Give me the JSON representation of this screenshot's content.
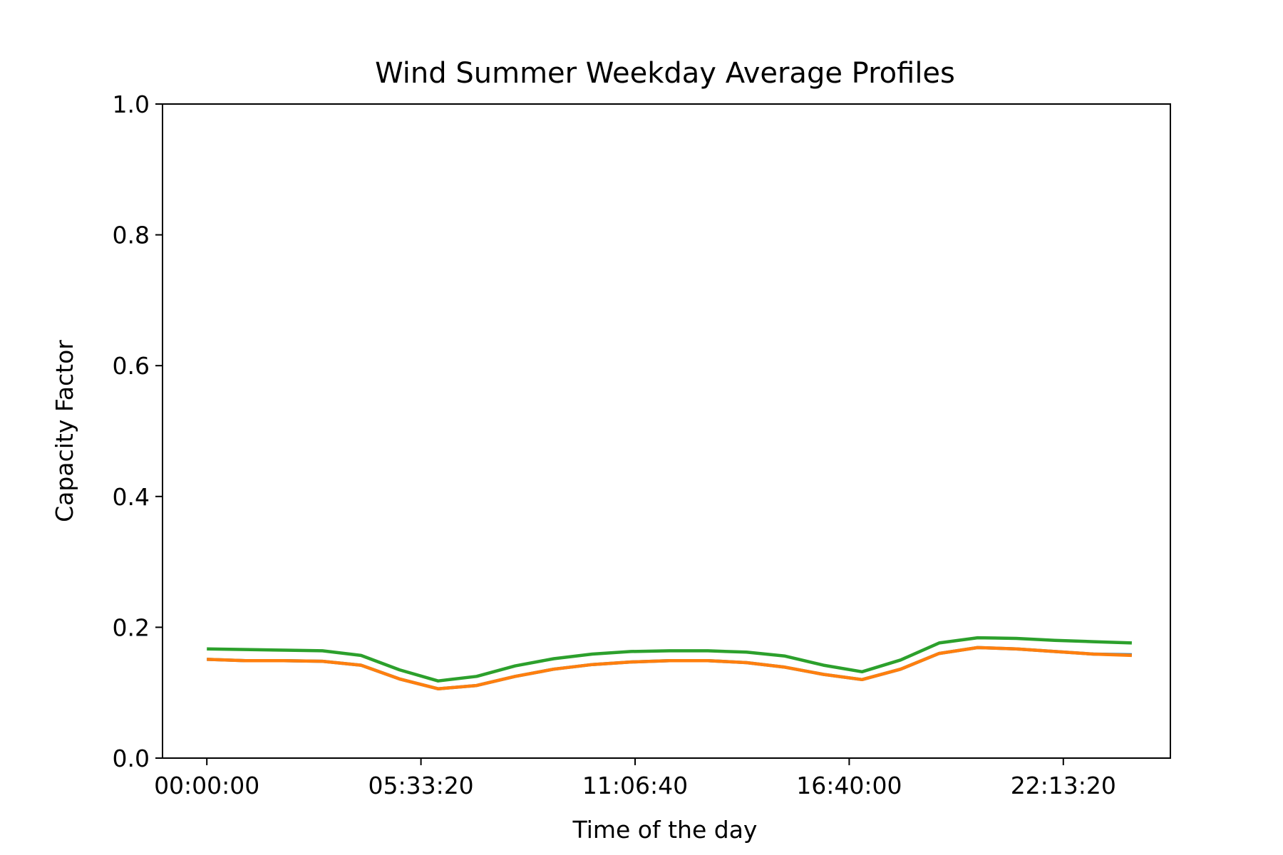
{
  "chart_data": {
    "type": "line",
    "title": "Wind Summer Weekday Average Profiles",
    "xlabel": "Time of the day",
    "ylabel": "Capacity Factor",
    "ylim": [
      0.0,
      1.0
    ],
    "yticks": [
      "0.0",
      "0.2",
      "0.4",
      "0.6",
      "0.8",
      "1.0"
    ],
    "xticks": [
      "00:00:00",
      "05:33:20",
      "11:06:40",
      "16:40:00",
      "22:13:20"
    ],
    "xtick_hours": [
      0,
      5.5556,
      11.1111,
      16.6667,
      22.2222
    ],
    "xlim_hours": [
      -1.15,
      25.0
    ],
    "grid": false,
    "x_hours": [
      0,
      1,
      2,
      3,
      4,
      5,
      6,
      7,
      8,
      9,
      10,
      11,
      12,
      13,
      14,
      15,
      16,
      17,
      18,
      19,
      20,
      21,
      22,
      23,
      24
    ],
    "series": [
      {
        "color": "#1f77b4",
        "values": [
          0.151,
          0.149,
          0.149,
          0.148,
          0.142,
          0.121,
          0.106,
          0.111,
          0.125,
          0.136,
          0.143,
          0.147,
          0.149,
          0.149,
          0.146,
          0.139,
          0.128,
          0.12,
          0.136,
          0.16,
          0.169,
          0.167,
          0.163,
          0.159,
          0.158
        ]
      },
      {
        "color": "#ff7f0e",
        "values": [
          0.151,
          0.149,
          0.149,
          0.148,
          0.142,
          0.121,
          0.106,
          0.111,
          0.125,
          0.136,
          0.143,
          0.147,
          0.149,
          0.149,
          0.146,
          0.139,
          0.128,
          0.12,
          0.136,
          0.16,
          0.169,
          0.167,
          0.163,
          0.159,
          0.157
        ]
      },
      {
        "color": "#2ca02c",
        "values": [
          0.167,
          0.166,
          0.165,
          0.164,
          0.157,
          0.135,
          0.118,
          0.125,
          0.141,
          0.152,
          0.159,
          0.163,
          0.164,
          0.164,
          0.162,
          0.156,
          0.142,
          0.132,
          0.15,
          0.176,
          0.184,
          0.183,
          0.18,
          0.178,
          0.176
        ]
      }
    ]
  }
}
